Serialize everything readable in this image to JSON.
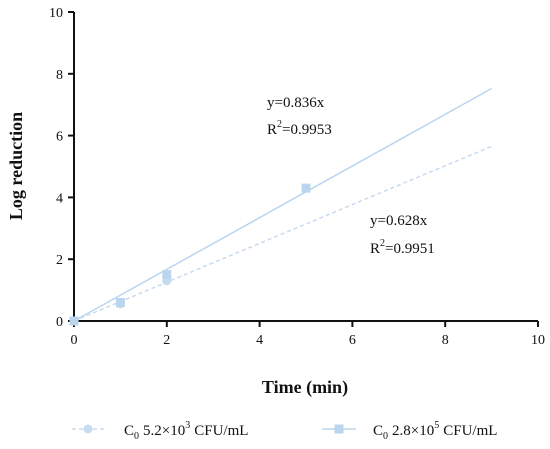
{
  "chart_data": {
    "type": "scatter",
    "xlabel": "Time (min)",
    "ylabel": "Log reduction",
    "xlim": [
      0,
      10
    ],
    "ylim": [
      0,
      10
    ],
    "xticks": [
      0,
      2,
      4,
      6,
      8,
      10
    ],
    "yticks": [
      0,
      2,
      4,
      6,
      8,
      10
    ],
    "grid": false,
    "legend_position": "bottom",
    "series": [
      {
        "name_parts": {
          "c": "C",
          "sub": "0",
          "text": "5.2×10",
          "sup": "3",
          "unit": "CFU/mL"
        },
        "marker": "circle",
        "line_style": "dashed",
        "color": "#c6dbf0",
        "points": [
          {
            "x": 0,
            "y": 0
          },
          {
            "x": 1,
            "y": 0.55
          },
          {
            "x": 2,
            "y": 1.3
          }
        ],
        "fit": {
          "slope": 0.628,
          "x_range": [
            0,
            9
          ]
        },
        "equation": "y=0.628x",
        "r2_label": "R",
        "r2_sup": "2",
        "r2_value": "=0.9951"
      },
      {
        "name_parts": {
          "c": "C",
          "sub": "0",
          "text": "2.8×10",
          "sup": "5",
          "unit": "CFU/mL"
        },
        "marker": "square",
        "line_style": "solid",
        "color": "#bcd5ee",
        "points": [
          {
            "x": 0,
            "y": 0
          },
          {
            "x": 1,
            "y": 0.6
          },
          {
            "x": 2,
            "y": 1.5
          },
          {
            "x": 5,
            "y": 4.3
          }
        ],
        "fit": {
          "slope": 0.836,
          "x_range": [
            0,
            9
          ]
        },
        "equation": "y=0.836x",
        "r2_label": "R",
        "r2_sup": "2",
        "r2_value": "=0.9953"
      }
    ]
  }
}
